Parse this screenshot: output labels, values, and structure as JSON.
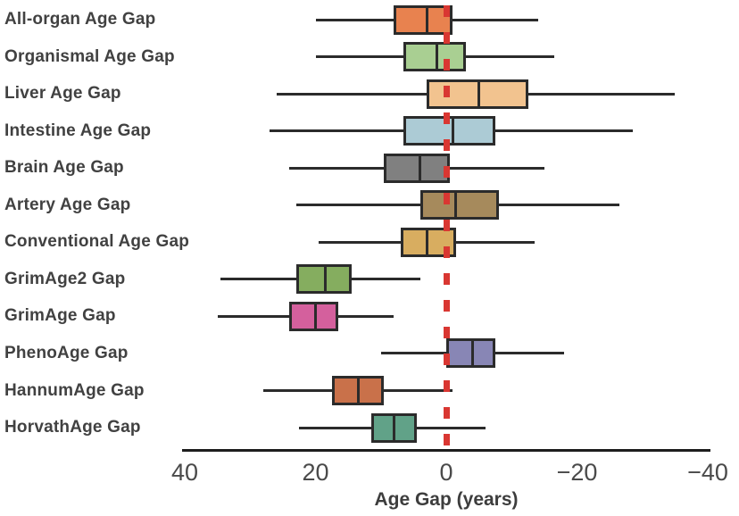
{
  "figure": {
    "background_color": "#ffffff",
    "box_border_color": "#2b2b2b",
    "whisker_color": "#2b2b2b"
  },
  "chart_data": {
    "type": "boxplot",
    "orientation": "horizontal",
    "title": "",
    "xlabel": "Age Gap (years)",
    "x_axis": {
      "range": [
        40,
        -40
      ],
      "reversed": true,
      "ticks": [
        40,
        20,
        0,
        -20,
        -40
      ],
      "tick_labels": [
        "40",
        "20",
        "0",
        "−20",
        "−40"
      ],
      "grid": false
    },
    "reference_line": {
      "value": 0,
      "style": "dashed",
      "color": "#d93732"
    },
    "legend": null,
    "series": [
      {
        "label": "All-organ Age Gap",
        "color": "#e8824f",
        "whisker_low": -14,
        "q1": -1,
        "median": 3,
        "q3": 8,
        "whisker_high": 20
      },
      {
        "label": "Organismal Age Gap",
        "color": "#a9cf92",
        "whisker_low": -16.5,
        "q1": -3,
        "median": 1.5,
        "q3": 6.5,
        "whisker_high": 20
      },
      {
        "label": "Liver Age Gap",
        "color": "#f2c38f",
        "whisker_low": -35,
        "q1": -12.5,
        "median": -5,
        "q3": 3,
        "whisker_high": 26
      },
      {
        "label": "Intestine Age Gap",
        "color": "#accbd5",
        "whisker_low": -28.5,
        "q1": -7.5,
        "median": -1,
        "q3": 6.5,
        "whisker_high": 27
      },
      {
        "label": "Brain Age Gap",
        "color": "#808080",
        "whisker_low": -15,
        "q1": -0.5,
        "median": 4,
        "q3": 9.5,
        "whisker_high": 24
      },
      {
        "label": "Artery Age Gap",
        "color": "#a68a5c",
        "whisker_low": -26.5,
        "q1": -8,
        "median": -1.5,
        "q3": 4,
        "whisker_high": 23
      },
      {
        "label": "Conventional Age Gap",
        "color": "#d8ad60",
        "whisker_low": -13.5,
        "q1": -1.5,
        "median": 3,
        "q3": 7,
        "whisker_high": 19.5
      },
      {
        "label": "GrimAge2 Gap",
        "color": "#85ad5f",
        "whisker_low": 4,
        "q1": 14.5,
        "median": 18.5,
        "q3": 23,
        "whisker_high": 34.5
      },
      {
        "label": "GrimAge Gap",
        "color": "#d4609d",
        "whisker_low": 8,
        "q1": 16.5,
        "median": 20,
        "q3": 24,
        "whisker_high": 35
      },
      {
        "label": "PhenoAge Gap",
        "color": "#8886b5",
        "whisker_low": -18,
        "q1": -7.5,
        "median": -4,
        "q3": 0,
        "whisker_high": 10
      },
      {
        "label": "HannumAge Gap",
        "color": "#c9714a",
        "whisker_low": -1,
        "q1": 9.5,
        "median": 13.5,
        "q3": 17.5,
        "whisker_high": 28
      },
      {
        "label": "HorvathAge Gap",
        "color": "#61a288",
        "whisker_low": -6,
        "q1": 4.5,
        "median": 8,
        "q3": 11.5,
        "whisker_high": 22.5
      }
    ]
  }
}
